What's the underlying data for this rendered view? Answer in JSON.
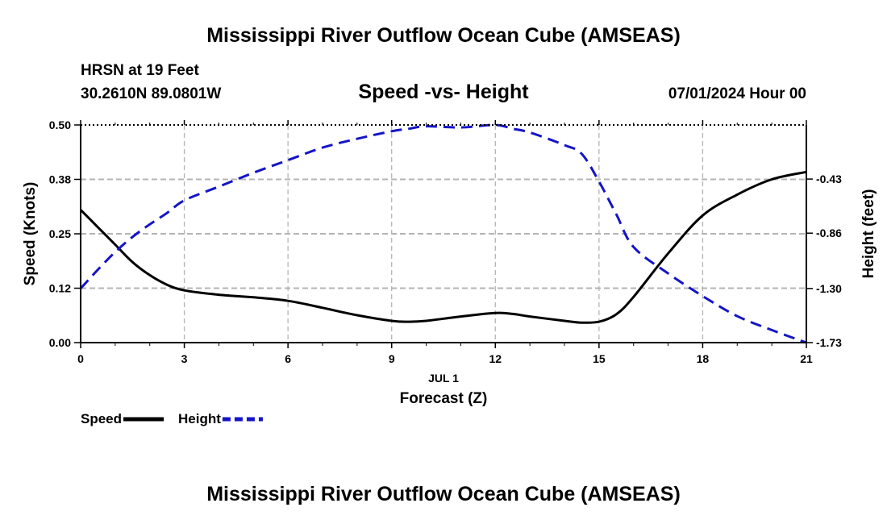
{
  "header": {
    "title_top": "Mississippi River Outflow Ocean Cube (AMSEAS)",
    "station": "HRSN at 19 Feet",
    "coords": "30.2610N  89.0801W",
    "subtitle": "Speed -vs- Height",
    "datetime": "07/01/2024 Hour 00",
    "title_bottom": "Mississippi River Outflow Ocean Cube (AMSEAS)"
  },
  "chart_data": {
    "type": "line",
    "title": "Speed -vs- Height",
    "x": [
      0,
      0.5,
      1,
      1.5,
      2,
      2.5,
      3,
      4,
      5,
      6,
      7,
      8,
      9,
      9.5,
      10,
      11,
      12,
      12.5,
      13,
      14,
      14.5,
      15,
      15.5,
      16,
      17,
      18,
      19,
      20,
      21
    ],
    "x_ticks": [
      0,
      3,
      6,
      9,
      12,
      15,
      18,
      21
    ],
    "x_tick_labels": [
      "0",
      "3",
      "6",
      "9",
      "12",
      "15",
      "18",
      "21"
    ],
    "xlim": [
      0,
      21
    ],
    "x_sublabel": "JUL 1",
    "xlabel": "Forecast (Z)",
    "y_left": {
      "label": "Speed (Knots)",
      "ylim": [
        0,
        0.5
      ],
      "ticks": [
        0.0,
        0.125,
        0.25,
        0.375,
        0.5
      ],
      "tick_labels": [
        "0.00",
        "0.12",
        "0.25",
        "0.38",
        "0.50"
      ]
    },
    "y_right": {
      "label": "Height (feet)",
      "ylim": [
        -1.73,
        -0.0
      ],
      "ticks": [
        -1.73,
        -1.3,
        -0.86,
        -0.43
      ],
      "tick_labels": [
        "-1.73",
        "-1.30",
        "-0.86",
        "-0.43"
      ]
    },
    "grid": true,
    "legend_position": "bottom-left",
    "series": [
      {
        "name": "Speed",
        "axis": "left",
        "color": "#000000",
        "style": "solid",
        "values": [
          0.305,
          0.265,
          0.225,
          0.185,
          0.155,
          0.133,
          0.12,
          0.11,
          0.104,
          0.096,
          0.08,
          0.063,
          0.05,
          0.048,
          0.05,
          0.06,
          0.068,
          0.066,
          0.06,
          0.05,
          0.046,
          0.048,
          0.065,
          0.105,
          0.205,
          0.292,
          0.34,
          0.375,
          0.392
        ]
      },
      {
        "name": "Height",
        "axis": "right",
        "color": "#1414c8",
        "style": "dashed",
        "values": [
          -1.3,
          -1.15,
          -1.01,
          -0.89,
          -0.79,
          -0.7,
          -0.6,
          -0.49,
          -0.38,
          -0.28,
          -0.18,
          -0.11,
          -0.05,
          -0.03,
          -0.01,
          -0.02,
          -0.0,
          -0.03,
          -0.06,
          -0.16,
          -0.23,
          -0.45,
          -0.71,
          -0.97,
          -1.18,
          -1.36,
          -1.52,
          -1.63,
          -1.73
        ]
      }
    ]
  }
}
